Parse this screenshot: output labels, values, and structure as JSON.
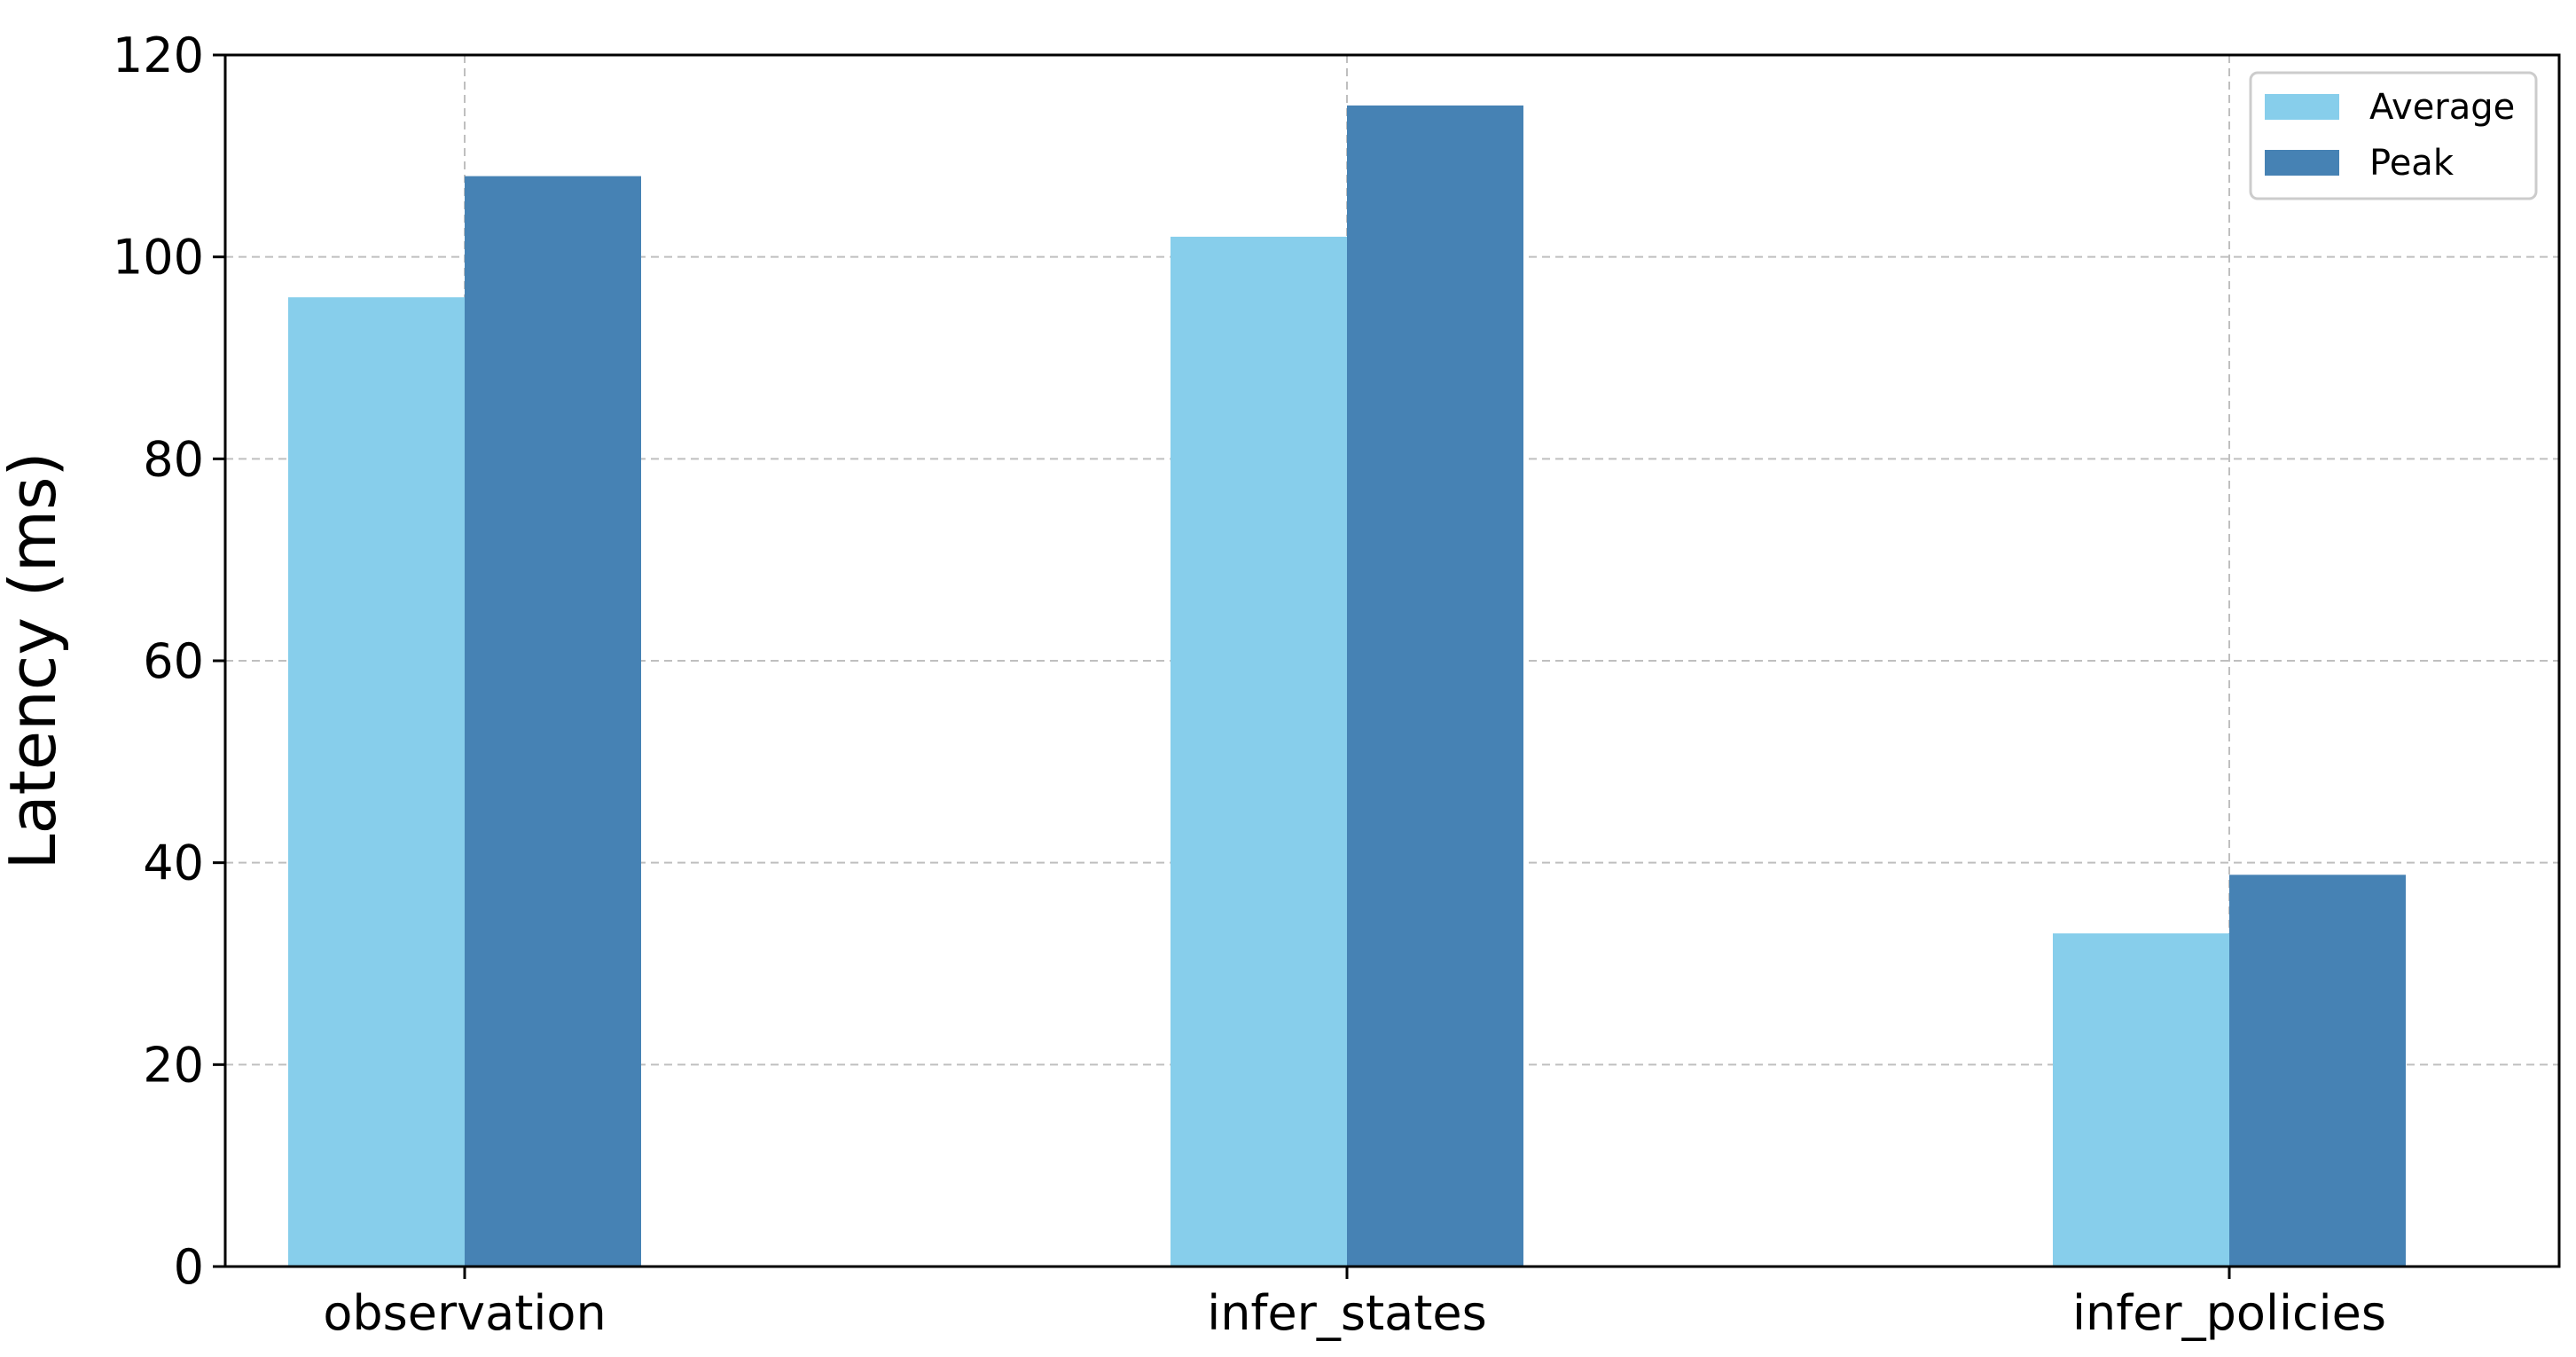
{
  "chart_data": {
    "type": "bar",
    "categories": [
      "observation",
      "infer_states",
      "infer_policies"
    ],
    "series": [
      {
        "name": "Average",
        "values": [
          96,
          102,
          33
        ],
        "color": "#87CEEB"
      },
      {
        "name": "Peak",
        "values": [
          108,
          115,
          38.8
        ],
        "color": "#4682B4"
      }
    ],
    "title": "",
    "xlabel": "",
    "ylabel": "Latency (ms)",
    "ylim": [
      0,
      120
    ],
    "yticks": [
      0,
      20,
      40,
      60,
      80,
      100,
      120
    ],
    "grid": true,
    "legend_position": "upper-right"
  }
}
